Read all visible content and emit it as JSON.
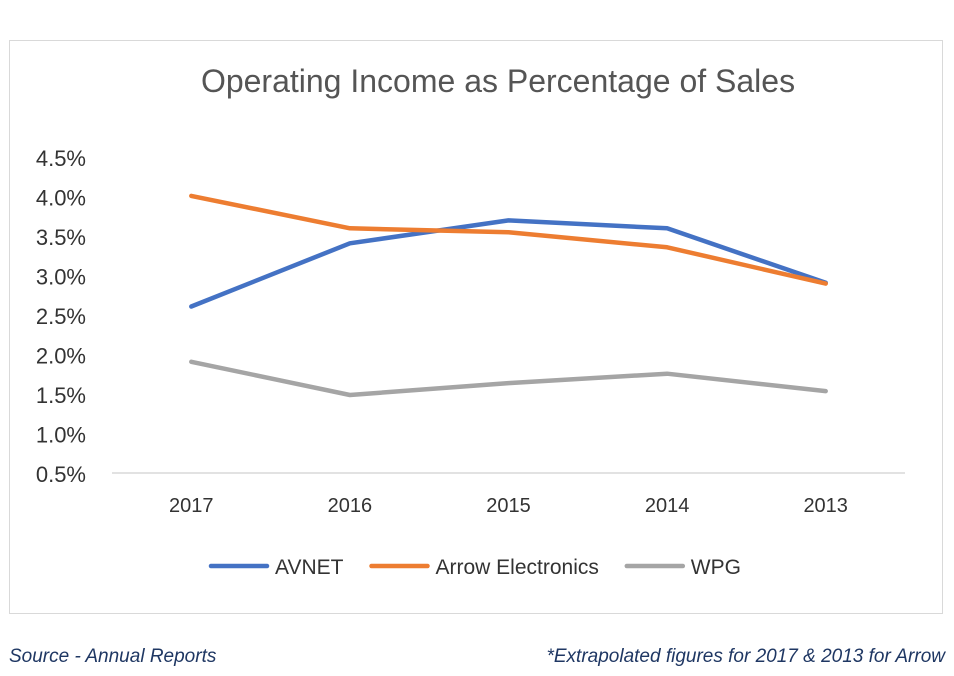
{
  "chart_data": {
    "type": "line",
    "title": "Operating Income as Percentage of Sales",
    "categories": [
      "2017",
      "2016",
      "2015",
      "2014",
      "2013"
    ],
    "y_ticks": [
      "0.5%",
      "1.0%",
      "1.5%",
      "2.0%",
      "2.5%",
      "3.0%",
      "3.5%",
      "4.0%",
      "4.5%"
    ],
    "ylim": [
      0.5,
      4.5
    ],
    "grid": false,
    "legend_position": "bottom",
    "series": [
      {
        "name": "AVNET",
        "color": "#4472c4",
        "values": [
          2.62,
          3.42,
          3.71,
          3.61,
          2.92
        ]
      },
      {
        "name": "Arrow Electronics",
        "color": "#ed7d31",
        "values": [
          4.02,
          3.61,
          3.56,
          3.37,
          2.91
        ]
      },
      {
        "name": "WPG",
        "color": "#a5a5a5",
        "values": [
          1.92,
          1.5,
          1.65,
          1.77,
          1.55
        ]
      }
    ]
  },
  "footnotes": {
    "source": "Source - Annual Reports",
    "note": "*Extrapolated figures for 2017 & 2013 for Arrow"
  }
}
